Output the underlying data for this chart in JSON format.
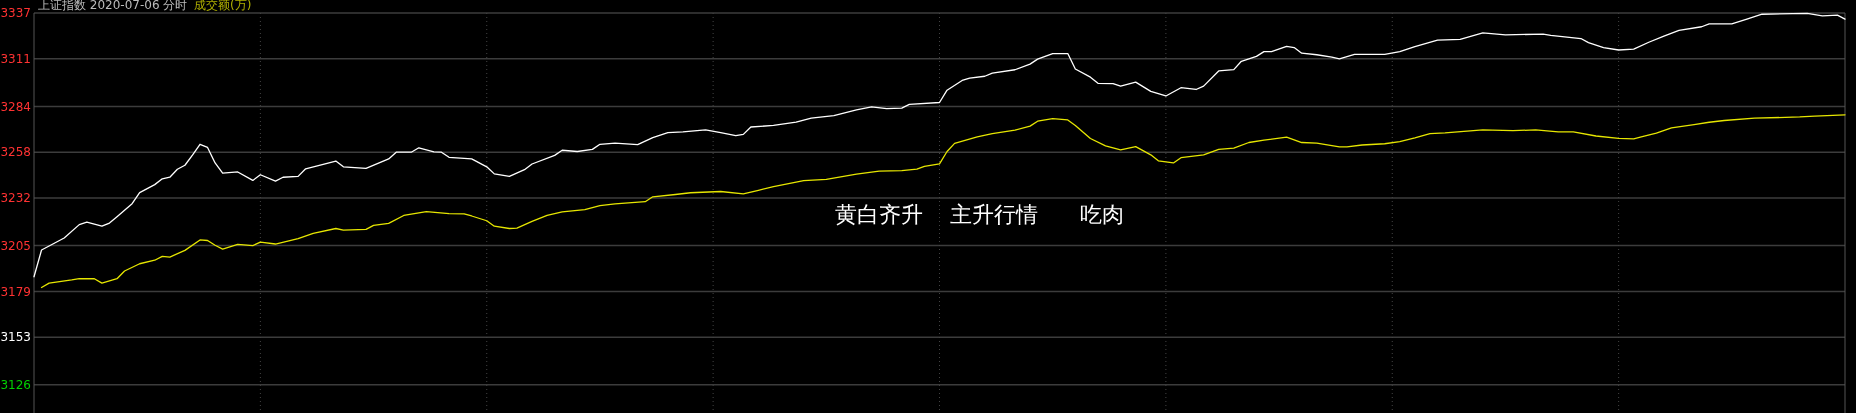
{
  "chart_data": {
    "type": "line",
    "title": "上证指数  2020-07-06 分时",
    "annotations": [
      "成交额(万)",
      "黄白齐升    主升行情      吃肉"
    ],
    "categories": [
      null,
      null,
      null,
      null,
      null,
      null,
      null,
      null,
      null,
      null,
      null,
      null,
      null,
      null,
      null,
      null,
      null,
      null,
      null,
      null,
      null,
      null,
      null,
      null,
      null,
      null,
      null,
      null,
      null,
      null,
      null,
      null,
      null,
      null,
      null,
      null,
      null,
      null,
      null,
      null,
      null,
      null,
      null,
      null,
      null,
      null,
      null,
      null,
      null,
      null,
      null,
      null,
      null,
      null,
      null,
      null,
      null,
      null,
      null,
      null,
      null,
      null,
      null,
      null,
      null,
      null,
      null,
      null,
      null,
      null,
      null,
      null,
      null,
      null,
      null,
      null,
      null,
      null,
      null,
      null,
      null,
      null,
      null,
      null,
      null,
      null,
      null,
      null,
      null,
      null,
      null,
      null,
      null,
      null,
      null,
      null,
      null,
      null,
      null,
      null,
      null,
      null,
      null,
      null,
      null,
      null,
      null,
      null,
      null,
      null,
      null,
      null,
      null,
      null,
      null,
      null,
      null,
      null,
      null,
      null,
      null,
      null,
      null,
      null,
      null,
      null,
      null,
      null,
      null,
      null,
      null,
      null,
      null,
      null,
      null,
      null,
      null,
      null,
      null,
      null,
      null,
      null,
      null,
      null,
      null,
      null,
      null,
      null,
      null,
      null,
      null,
      null,
      null,
      null,
      null,
      null,
      null,
      null,
      null,
      null,
      null,
      null,
      null,
      null,
      null,
      null,
      null,
      null,
      null,
      null,
      null,
      null,
      null,
      null,
      null,
      null,
      null,
      null,
      null,
      null,
      null,
      null,
      null,
      null,
      null,
      null,
      null,
      null,
      null,
      null,
      null,
      null,
      null,
      null,
      null,
      null,
      null,
      null,
      null,
      null,
      null,
      null,
      null,
      null,
      null,
      null,
      null,
      null,
      null,
      null,
      null,
      null,
      null,
      null,
      null,
      null,
      null,
      null,
      null,
      null,
      null,
      null,
      null,
      null,
      null,
      null,
      null,
      null,
      null,
      null,
      null,
      null,
      null,
      null,
      null,
      null,
      null,
      null,
      null,
      null,
      null
    ],
    "ylim": [
      3110,
      3337
    ],
    "yticks": [
      3337,
      3311,
      3284,
      3258,
      3232,
      3205,
      3179,
      3153,
      3126
    ],
    "tick_labels": "y",
    "grid": true,
    "series": [
      {
        "color": "#ffffff",
        "values": [
          3187.3,
          3202.5,
          null,
          null,
          3209.3,
          null,
          3216.9,
          3218.3,
          null,
          3216.0,
          3217.8,
          3221.4,
          null,
          3228.8,
          3235.1,
          null,
          3239.6,
          3242.9,
          3243.8,
          3248.3,
          3250.6,
          3256.4,
          3262.5,
          3260.7,
          3251.9,
          3246.1,
          null,
          3246.8,
          null,
          3242.0,
          3245.2,
          null,
          3241.6,
          3243.8,
          null,
          3244.3,
          3248.6,
          null,
          null,
          null,
          3253.0,
          3249.7,
          null,
          null,
          3248.8,
          null,
          null,
          3254.2,
          3258.0,
          null,
          3258.0,
          3260.5,
          null,
          3258.2,
          3258.0,
          3255.1,
          null,
          null,
          3254.2,
          null,
          3249.7,
          3245.7,
          null,
          3244.3,
          null,
          3248.1,
          3251.3,
          null,
          null,
          3256.2,
          3259.1,
          null,
          3258.4,
          null,
          3259.6,
          3262.5,
          null,
          3263.1,
          null,
          null,
          3262.3,
          null,
          3266.3,
          null,
          3269.1,
          null,
          3269.5,
          null,
          null,
          3270.7,
          null,
          3269.1,
          null,
          3267.4,
          3268.1,
          3272.3,
          null,
          null,
          3273.2,
          null,
          null,
          3275.1,
          null,
          3277.4,
          null,
          null,
          3278.8,
          null,
          null,
          3282.0,
          null,
          3283.7,
          null,
          3282.7,
          null,
          3283.0,
          3285.1,
          null,
          null,
          null,
          3286.2,
          3293.2,
          null,
          3298.7,
          3300.1,
          null,
          3301.1,
          3302.9,
          null,
          null,
          3304.8,
          null,
          3308.0,
          3310.8,
          null,
          3314.0,
          null,
          3314.0,
          3305.2,
          null,
          3300.6,
          3297.1,
          null,
          3296.9,
          3295.5,
          null,
          3297.8,
          null,
          3292.5,
          null,
          3289.9,
          null,
          3294.6,
          null,
          3293.6,
          3295.5,
          null,
          3304.1,
          null,
          3304.9,
          3309.6,
          null,
          3312.4,
          3315.1,
          3315.1,
          null,
          3318.1,
          3317.4,
          3314.2,
          null,
          3313.3,
          null,
          3311.9,
          3311.0,
          null,
          3313.5,
          null,
          null,
          null,
          3313.5,
          null,
          3315.1,
          null,
          3317.9,
          null,
          null,
          3321.6,
          null,
          null,
          3322.0,
          null,
          null,
          3325.7,
          null,
          null,
          3324.6,
          null,
          null,
          null,
          null,
          3325.0,
          3324.3,
          null,
          null,
          null,
          3322.5,
          3320.2,
          null,
          3317.4,
          null,
          3316.0,
          null,
          3316.5,
          null,
          3320.4,
          null,
          3323.9,
          null,
          3327.1,
          null,
          null,
          3329.2,
          3330.8,
          null,
          null,
          3330.8,
          null,
          3333.5,
          null,
          3336.3,
          null,
          null,
          null,
          null,
          null,
          3336.8,
          null,
          3335.4,
          null,
          3335.8,
          3333.5
        ]
      },
      {
        "color": "#e6e600",
        "values": [
          null,
          3181.2,
          3183.7,
          null,
          null,
          3185.5,
          3186.2,
          null,
          3186.2,
          3183.7,
          null,
          3186.2,
          3190.6,
          null,
          3194.7,
          null,
          3196.7,
          3198.9,
          3198.5,
          null,
          3202.3,
          null,
          3208.2,
          3207.9,
          3205.2,
          3203.0,
          null,
          3205.7,
          null,
          3205.0,
          3207.0,
          null,
          3205.9,
          null,
          null,
          3209.0,
          null,
          3212.0,
          null,
          null,
          3214.7,
          3213.8,
          null,
          null,
          3214.2,
          3216.5,
          null,
          3217.6,
          null,
          3222.1,
          null,
          null,
          3224.3,
          null,
          null,
          3223.2,
          null,
          3223.0,
          3221.8,
          null,
          3219.1,
          3216.0,
          null,
          3214.7,
          3214.9,
          null,
          3218.7,
          null,
          3222.1,
          null,
          3224.1,
          null,
          null,
          3225.4,
          null,
          3227.7,
          null,
          3228.7,
          null,
          null,
          null,
          3229.9,
          3232.7,
          null,
          null,
          3234.0,
          null,
          3235.0,
          null,
          null,
          null,
          3235.7,
          null,
          null,
          3234.3,
          null,
          3236.4,
          null,
          3238.5,
          null,
          null,
          null,
          3241.9,
          null,
          null,
          3242.6,
          null,
          null,
          null,
          3245.6,
          null,
          null,
          3247.3,
          null,
          null,
          3247.5,
          null,
          3248.4,
          3250.0,
          null,
          3251.4,
          3258.4,
          3263.0,
          null,
          null,
          3266.7,
          null,
          3268.6,
          null,
          null,
          3270.5,
          null,
          3272.8,
          3275.6,
          null,
          3277.0,
          null,
          3276.3,
          3273.2,
          null,
          3265.8,
          null,
          3261.6,
          null,
          3259.3,
          null,
          3261.2,
          null,
          3256.5,
          3253.1,
          null,
          3251.9,
          3254.9,
          null,
          null,
          3256.5,
          null,
          3259.6,
          null,
          3260.3,
          null,
          3263.5,
          null,
          3264.9,
          null,
          null,
          3266.5,
          null,
          3263.5,
          null,
          3263.1,
          null,
          null,
          3261.0,
          3261.0,
          null,
          3262.1,
          null,
          null,
          3262.8,
          null,
          3264.0,
          null,
          3266.1,
          null,
          3268.6,
          null,
          3269.0,
          null,
          null,
          null,
          null,
          3270.7,
          null,
          null,
          null,
          3270.2,
          null,
          null,
          3270.7,
          null,
          null,
          3269.5,
          null,
          3269.5,
          null,
          null,
          3267.2,
          null,
          null,
          3265.8,
          null,
          3265.6,
          3266.7,
          null,
          3268.8,
          null,
          3271.8,
          null,
          null,
          3273.7,
          null,
          3275.0,
          null,
          3276.0,
          null,
          null,
          null,
          3277.3,
          null,
          null,
          null,
          null,
          null,
          3278.0,
          null,
          3278.5,
          null,
          null,
          null,
          3279.2
        ]
      }
    ]
  }
}
